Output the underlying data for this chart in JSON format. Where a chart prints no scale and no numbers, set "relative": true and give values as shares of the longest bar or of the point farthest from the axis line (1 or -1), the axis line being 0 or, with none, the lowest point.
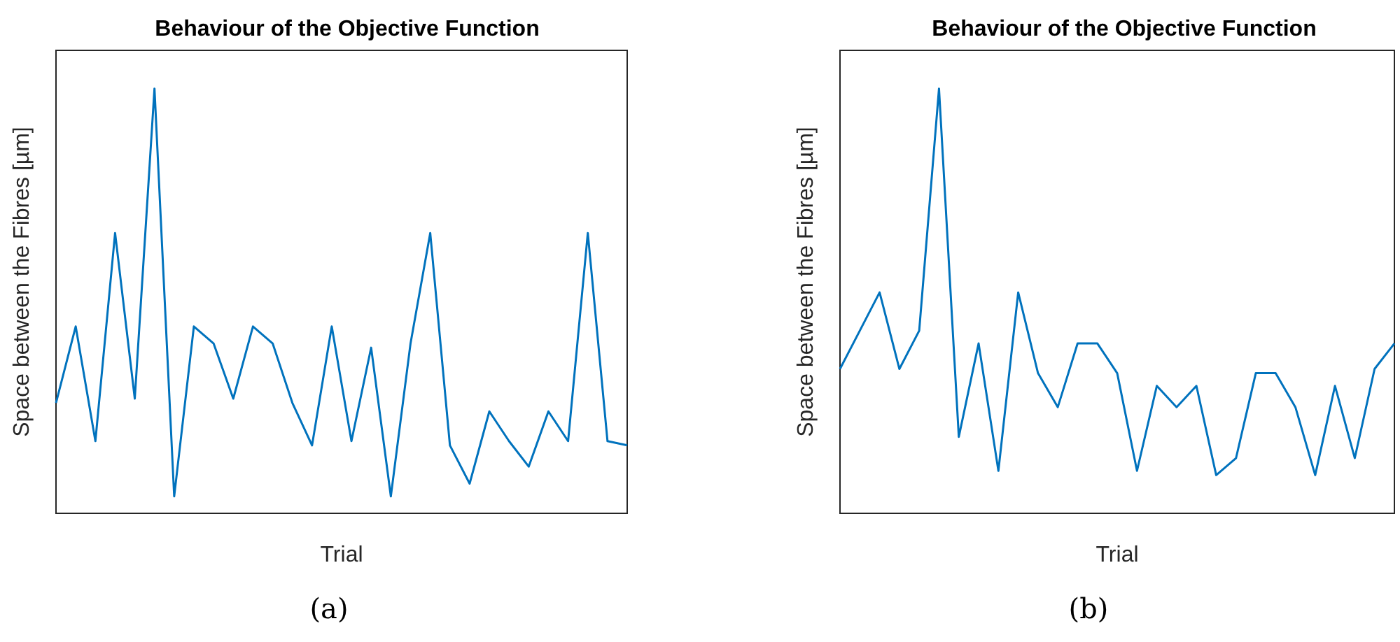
{
  "chart_data": [
    {
      "type": "line",
      "title": "Behaviour of the Objective Function",
      "xlabel": "Trial",
      "ylabel": "Space between the Fibres [µm]",
      "annotations": [
        "(a)"
      ],
      "relative": true,
      "grid": false,
      "legend": false,
      "marker": "none",
      "line_style": "solid",
      "categories": [
        null,
        null,
        null,
        null,
        null,
        null,
        null,
        null,
        null,
        null,
        null,
        null,
        null,
        null,
        null,
        null,
        null,
        null,
        null,
        null,
        null,
        null,
        null,
        null,
        null,
        null,
        null,
        null,
        null,
        null
      ],
      "series": [
        {
          "color": "#0072bd",
          "values": [
            0.26,
            0.44,
            0.17,
            0.66,
            0.27,
            1,
            0.04,
            0.44,
            0.4,
            0.27,
            0.44,
            0.4,
            0.26,
            0.16,
            0.44,
            0.17,
            0.39,
            0.04,
            0.4,
            0.66,
            0.16,
            0.07,
            0.24,
            0.17,
            0.11,
            0.24,
            0.17,
            0.66,
            0.17,
            0.16
          ]
        }
      ]
    },
    {
      "type": "line",
      "title": "Behaviour of the Objective Function",
      "xlabel": "Trial",
      "ylabel": "Space between the Fibres [µm]",
      "annotations": [
        "(b)"
      ],
      "relative": true,
      "grid": false,
      "legend": false,
      "marker": "none",
      "line_style": "solid",
      "categories": [
        null,
        null,
        null,
        null,
        null,
        null,
        null,
        null,
        null,
        null,
        null,
        null,
        null,
        null,
        null,
        null,
        null,
        null,
        null,
        null,
        null,
        null,
        null,
        null,
        null,
        null,
        null,
        null,
        null
      ],
      "series": [
        {
          "color": "#0072bd",
          "values": [
            0.34,
            0.43,
            0.52,
            0.34,
            0.43,
            1,
            0.18,
            0.4,
            0.1,
            0.52,
            0.33,
            0.25,
            0.4,
            0.4,
            0.33,
            0.1,
            0.3,
            0.25,
            0.3,
            0.09,
            0.13,
            0.33,
            0.33,
            0.25,
            0.09,
            0.3,
            0.13,
            0.34,
            0.4
          ]
        }
      ]
    }
  ]
}
